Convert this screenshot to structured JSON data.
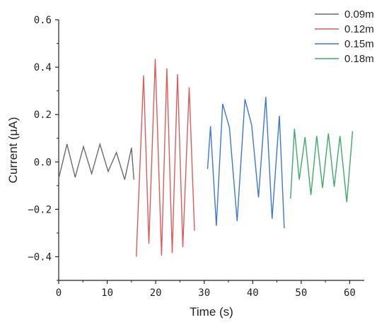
{
  "chart_data": {
    "type": "line",
    "xlabel": "Time (s)",
    "ylabel": "Current (μA)",
    "xlim": [
      0,
      63
    ],
    "ylim": [
      -0.5,
      0.6
    ],
    "xticks": [
      0,
      10,
      20,
      30,
      40,
      50,
      60
    ],
    "xtick_labels": [
      "0",
      "10",
      "20",
      "30",
      "40",
      "50",
      "60"
    ],
    "yticks": [
      -0.4,
      -0.2,
      0.0,
      0.2,
      0.4,
      0.6
    ],
    "ytick_labels": [
      "−0.4",
      "−0.2",
      "0.0",
      "0.2",
      "0.4",
      "0.6"
    ],
    "legend_position": "top-right",
    "grid": false,
    "series": [
      {
        "name": "0.09m",
        "color": "#6b6b6b",
        "x": [
          0.0,
          1.7,
          3.4,
          5.1,
          6.8,
          8.5,
          10.2,
          11.9,
          13.6,
          15.0,
          15.5
        ],
        "y": [
          -0.07,
          0.075,
          -0.065,
          0.065,
          -0.05,
          0.075,
          -0.04,
          0.04,
          -0.075,
          0.06,
          -0.075
        ]
      },
      {
        "name": "0.12m",
        "color": "#e05a5a",
        "x": [
          16.0,
          17.5,
          18.6,
          19.9,
          21.2,
          22.3,
          23.4,
          24.5,
          25.6,
          26.9,
          28.0
        ],
        "y": [
          -0.4,
          0.365,
          -0.345,
          0.435,
          -0.395,
          0.395,
          -0.385,
          0.37,
          -0.36,
          0.315,
          -0.29
        ]
      },
      {
        "name": "0.15m",
        "color": "#3a78d4",
        "x": [
          30.7,
          31.3,
          32.5,
          33.8,
          35.2,
          36.8,
          38.4,
          39.8,
          41.2,
          42.7,
          44.0,
          45.5,
          46.5
        ],
        "y": [
          -0.03,
          0.15,
          -0.27,
          0.245,
          0.145,
          -0.25,
          0.265,
          0.155,
          -0.15,
          0.275,
          -0.24,
          0.195,
          -0.28
        ]
      },
      {
        "name": "0.18m",
        "color": "#3daa6a",
        "x": [
          47.8,
          48.6,
          49.6,
          50.8,
          52.0,
          53.2,
          54.4,
          55.6,
          56.8,
          58.0,
          59.4,
          60.6
        ],
        "y": [
          -0.155,
          0.14,
          -0.075,
          0.105,
          -0.14,
          0.11,
          -0.11,
          0.12,
          -0.105,
          0.11,
          -0.17,
          0.13
        ]
      }
    ]
  }
}
